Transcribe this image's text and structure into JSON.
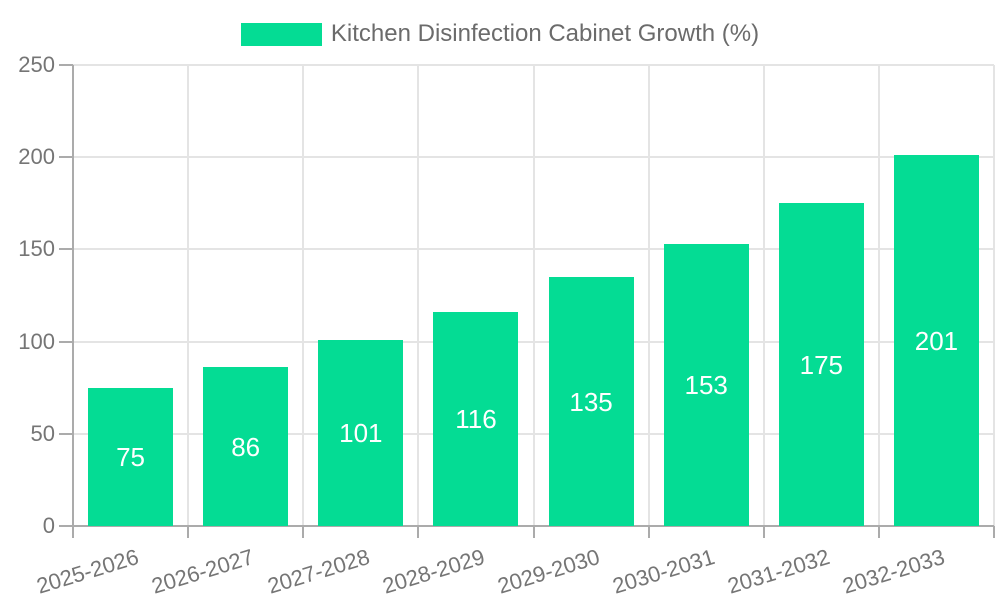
{
  "legend": {
    "label": "Kitchen Disinfection Cabinet Growth (%)",
    "swatch_color": "#04dc94"
  },
  "chart_data": {
    "type": "bar",
    "title": "Kitchen Disinfection Cabinet Growth (%)",
    "categories": [
      "2025-2026",
      "2026-2027",
      "2027-2028",
      "2028-2029",
      "2029-2030",
      "2030-2031",
      "2031-2032",
      "2032-2033"
    ],
    "values": [
      75,
      86,
      101,
      116,
      135,
      153,
      175,
      201
    ],
    "xlabel": "",
    "ylabel": "",
    "ylim": [
      0,
      250
    ],
    "yticks": [
      0,
      50,
      100,
      150,
      200,
      250
    ],
    "grid": true,
    "legend_position": "top-center",
    "bar_color": "#04dc94",
    "value_label_color": "#ffffff",
    "axis_text_color": "#757575",
    "value_labels_inside_bars": true
  }
}
